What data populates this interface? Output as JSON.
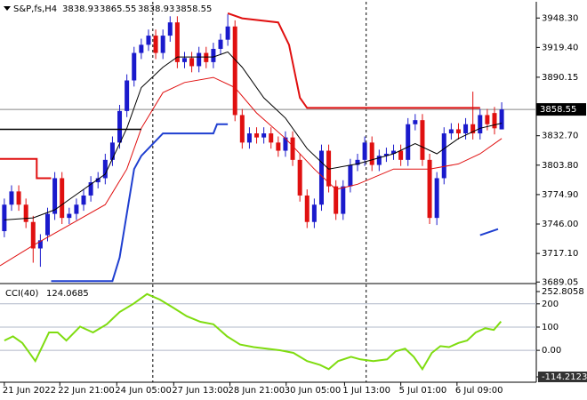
{
  "chart_data": [
    {
      "type": "candlestick",
      "symbol": "S&P,fs,H4",
      "open": [
        3739,
        3765,
        3778,
        3765,
        3748,
        3722,
        3735,
        3756,
        3791,
        3752,
        3756,
        3765,
        3774,
        3787,
        3791,
        3809,
        3826,
        3857,
        3887,
        3914,
        3922,
        3931,
        3914,
        3931,
        3944,
        3905,
        3909,
        3901,
        3914,
        3905,
        3918,
        3927,
        3940,
        3853,
        3826,
        3835,
        3831,
        3835,
        3826,
        3818,
        3831,
        3809,
        3774,
        3748,
        3765,
        3818,
        3783,
        3756,
        3783,
        3804,
        3809,
        3826,
        3804,
        3813,
        3815,
        3818,
        3809,
        3844,
        3848,
        3809,
        3752,
        3791,
        3835,
        3839,
        3835,
        3844,
        3835,
        3853,
        3855,
        3838.93
      ],
      "high": [
        3771,
        3784,
        3784,
        3771,
        3754,
        3736,
        3762,
        3797,
        3797,
        3762,
        3771,
        3780,
        3793,
        3797,
        3815,
        3832,
        3863,
        3893,
        3920,
        3928,
        3937,
        3937,
        3937,
        3950,
        3950,
        3915,
        3915,
        3920,
        3920,
        3924,
        3933,
        3952,
        3946,
        3859,
        3841,
        3841,
        3841,
        3841,
        3832,
        3837,
        3837,
        3815,
        3780,
        3771,
        3824,
        3824,
        3789,
        3789,
        3810,
        3815,
        3832,
        3832,
        3819,
        3821,
        3824,
        3824,
        3850,
        3854,
        3854,
        3815,
        3797,
        3841,
        3845,
        3845,
        3850,
        3876,
        3859,
        3859,
        3861,
        3865.55
      ],
      "low": [
        3733,
        3759,
        3759,
        3742,
        3708,
        3704,
        3729,
        3750,
        3746,
        3746,
        3750,
        3759,
        3768,
        3781,
        3785,
        3803,
        3820,
        3851,
        3881,
        3908,
        3916,
        3908,
        3908,
        3925,
        3899,
        3899,
        3895,
        3895,
        3899,
        3899,
        3912,
        3921,
        3847,
        3820,
        3820,
        3825,
        3825,
        3820,
        3812,
        3812,
        3803,
        3768,
        3742,
        3742,
        3759,
        3777,
        3750,
        3750,
        3777,
        3798,
        3803,
        3798,
        3798,
        3807,
        3809,
        3803,
        3803,
        3838,
        3803,
        3746,
        3745,
        3785,
        3829,
        3829,
        3829,
        3829,
        3829,
        3838,
        3834,
        3838.93
      ],
      "close": [
        3765,
        3778,
        3765,
        3748,
        3722,
        3730,
        3756,
        3791,
        3752,
        3756,
        3765,
        3774,
        3787,
        3791,
        3809,
        3826,
        3857,
        3887,
        3914,
        3922,
        3931,
        3914,
        3931,
        3944,
        3905,
        3909,
        3901,
        3914,
        3905,
        3918,
        3927,
        3940,
        3853,
        3826,
        3835,
        3831,
        3835,
        3826,
        3818,
        3831,
        3809,
        3774,
        3748,
        3765,
        3818,
        3783,
        3756,
        3783,
        3804,
        3809,
        3826,
        3804,
        3813,
        3815,
        3818,
        3809,
        3844,
        3848,
        3809,
        3752,
        3791,
        3835,
        3839,
        3835,
        3844,
        3835,
        3853,
        3844,
        3840,
        3858.55
      ],
      "up_color": "#1a1acc",
      "down_color": "#e01010",
      "xlim": [
        0.4,
        74.8
      ],
      "ylim": [
        3688.4,
        3962.5
      ],
      "yticks": [
        {
          "value": 3948.3,
          "label": "3948.30"
        },
        {
          "value": 3919.4,
          "label": "3919.40"
        },
        3890.15,
        {
          "value": 3832.7,
          "label": "3832.70"
        },
        {
          "value": 3803.8,
          "label": "3803.80"
        },
        {
          "value": 3774.9,
          "label": "3774.90"
        },
        {
          "value": 3746,
          "label": "3746.00"
        },
        {
          "value": 3717.1,
          "label": "3717.10"
        },
        3689.05
      ],
      "xticks": [
        {
          "value": 1,
          "label": "21 Jun 2022"
        },
        {
          "value": 8.7,
          "label": "22 Jun 21:00"
        },
        {
          "value": 16.6,
          "label": "24 Jun 05:00"
        },
        {
          "value": 24.5,
          "label": "27 Jun 13:00"
        },
        {
          "value": 32.3,
          "label": "28 Jun 21:00"
        },
        {
          "value": 40.1,
          "label": "30 Jun 05:00"
        },
        {
          "value": 48.2,
          "label": "1 Jul 13:00"
        },
        {
          "value": 56,
          "label": "5 Jul 01:00"
        },
        {
          "value": 63.8,
          "label": "6 Jul 09:00"
        }
      ],
      "vlines": [
        21.6,
        51.2
      ],
      "lines": [
        {
          "color": "#000000",
          "width": 1,
          "x": [
            1,
            5,
            8,
            10,
            15,
            18,
            20,
            23,
            25,
            30,
            32,
            34,
            37,
            40,
            43,
            46,
            50,
            55,
            58,
            61,
            64,
            67,
            70
          ],
          "values": [
            3750,
            3752,
            3760,
            3770,
            3795,
            3840,
            3880,
            3900,
            3910,
            3910,
            3915,
            3900,
            3870,
            3850,
            3820,
            3800,
            3805,
            3815,
            3825,
            3815,
            3830,
            3840,
            3845
          ]
        },
        {
          "color": "#e01010",
          "width": 1,
          "x": [
            0.4,
            5,
            10,
            15,
            18,
            20,
            23,
            26,
            30,
            33,
            36,
            40,
            44,
            47,
            50,
            55,
            60,
            64,
            67,
            70
          ],
          "values": [
            3705,
            3725,
            3745,
            3765,
            3800,
            3840,
            3875,
            3885,
            3890,
            3880,
            3855,
            3830,
            3800,
            3780,
            3785,
            3800,
            3800,
            3805,
            3815,
            3830
          ]
        },
        {
          "color": "#e01010",
          "width": 2,
          "x": [
            0.4,
            5.5,
            5.5,
            7.5,
            8,
            32,
            34,
            39,
            40.5,
            42,
            43,
            67
          ],
          "values": [
            3810,
            3810,
            3791,
            3791,
            null,
            3953,
            3948,
            3944,
            3922,
            3870,
            3860,
            3860
          ]
        },
        {
          "color": "#1f3fd0",
          "width": 2,
          "x": [
            7.5,
            16,
            17,
            19,
            20,
            23,
            23.5,
            30,
            30.5,
            32,
            33,
            67,
            69.5
          ],
          "values": [
            3690,
            3690,
            3713,
            3800,
            3813,
            3835,
            3835,
            3835,
            3844,
            3844,
            null,
            3735,
            3741
          ]
        },
        {
          "color": "#000000",
          "width": 1.5,
          "x": [
            0.4,
            20
          ],
          "values": [
            3839,
            3839
          ]
        }
      ]
    },
    {
      "type": "line",
      "title": "CCI(40)",
      "color": "#7fdc10",
      "x": [
        1,
        2.2,
        3.5,
        5.3,
        7.2,
        8.4,
        9.6,
        11.5,
        13.3,
        15.2,
        17,
        18.9,
        20.8,
        22.6,
        24.5,
        26.3,
        28.2,
        30,
        31.9,
        33.7,
        35.6,
        37.4,
        39.3,
        41.1,
        43,
        44.8,
        46,
        47.3,
        49.1,
        50.4,
        52.2,
        54.1,
        55.3,
        56.6,
        57.8,
        59,
        60.3,
        61.5,
        62.7,
        64,
        65.2,
        66.4,
        67.7,
        68.9,
        69.9
      ],
      "values": [
        42,
        60,
        32,
        -46,
        77,
        77,
        42,
        102,
        77,
        112,
        165,
        200,
        242,
        218,
        182,
        147,
        123,
        112,
        60,
        25,
        14,
        7,
        0,
        -11,
        -46,
        -63,
        -81,
        -46,
        -28,
        -39,
        -46,
        -39,
        -4,
        7,
        -28,
        -81,
        -11,
        18,
        14,
        32,
        42,
        77,
        95,
        88,
        124.0685
      ],
      "ylim": [
        -114.2123,
        252.8058
      ],
      "yticks": [
        252.8058,
        200,
        100,
        {
          "value": 0,
          "label": "0.00"
        },
        -114.2123
      ]
    }
  ]
}
